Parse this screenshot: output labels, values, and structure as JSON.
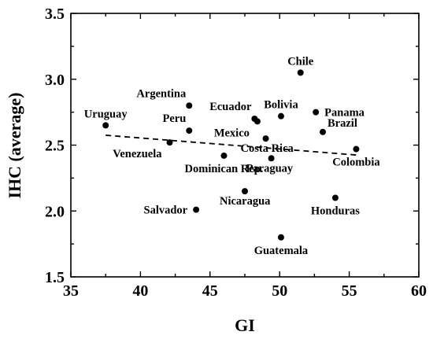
{
  "chart_data": {
    "type": "scatter",
    "title": "",
    "xlabel": "GI",
    "ylabel": "IHC (average)",
    "xlim": [
      35,
      60
    ],
    "ylim": [
      1.5,
      3.5
    ],
    "xticks": [
      35,
      40,
      45,
      50,
      55,
      60
    ],
    "yticks": [
      1.5,
      2.0,
      2.5,
      3.0,
      3.5
    ],
    "ytick_labels": [
      "1.5",
      "2.0",
      "2.5",
      "3.0",
      "3.5"
    ],
    "grid": false,
    "legend": "none",
    "points": [
      {
        "label": "Chile",
        "x": 51.5,
        "y": 3.05,
        "label_pos": "above"
      },
      {
        "label": "Argentina",
        "x": 43.5,
        "y": 2.8,
        "label_pos": "above-left"
      },
      {
        "label": "Uruguay",
        "x": 37.5,
        "y": 2.65,
        "label_pos": "above"
      },
      {
        "label": "Peru",
        "x": 43.5,
        "y": 2.61,
        "label_pos": "above-left"
      },
      {
        "label": "Ecuador",
        "x": 48.2,
        "y": 2.7,
        "label_pos": "above-left"
      },
      {
        "label": "Bolivia",
        "x": 50.1,
        "y": 2.72,
        "label_pos": "above"
      },
      {
        "label": "Panama",
        "x": 52.6,
        "y": 2.75,
        "label_pos": "right"
      },
      {
        "label": "Mexico",
        "x": 48.4,
        "y": 2.68,
        "label_pos": "below-left"
      },
      {
        "label": "Brazil",
        "x": 53.1,
        "y": 2.6,
        "label_pos": "above-right"
      },
      {
        "label": "Venezuela",
        "x": 42.1,
        "y": 2.52,
        "label_pos": "below-left"
      },
      {
        "label": "Costa Rica",
        "x": 49.0,
        "y": 2.55,
        "label_pos": "below-right"
      },
      {
        "label": "Colombia",
        "x": 55.5,
        "y": 2.47,
        "label_pos": "below"
      },
      {
        "label": "Dominican Rep.",
        "x": 46.0,
        "y": 2.42,
        "label_pos": "below"
      },
      {
        "label": "Paraguay",
        "x": 49.4,
        "y": 2.4,
        "label_pos": "below-right"
      },
      {
        "label": "Nicaragua",
        "x": 47.5,
        "y": 2.15,
        "label_pos": "below-right"
      },
      {
        "label": "Honduras",
        "x": 54.0,
        "y": 2.1,
        "label_pos": "below"
      },
      {
        "label": "Salvador",
        "x": 44.0,
        "y": 2.01,
        "label_pos": "left"
      },
      {
        "label": "Guatemala",
        "x": 50.1,
        "y": 1.8,
        "label_pos": "below"
      }
    ],
    "trendline": {
      "style": "dashed",
      "x": [
        37.5,
        55.5
      ],
      "y": [
        2.575,
        2.425
      ]
    }
  }
}
